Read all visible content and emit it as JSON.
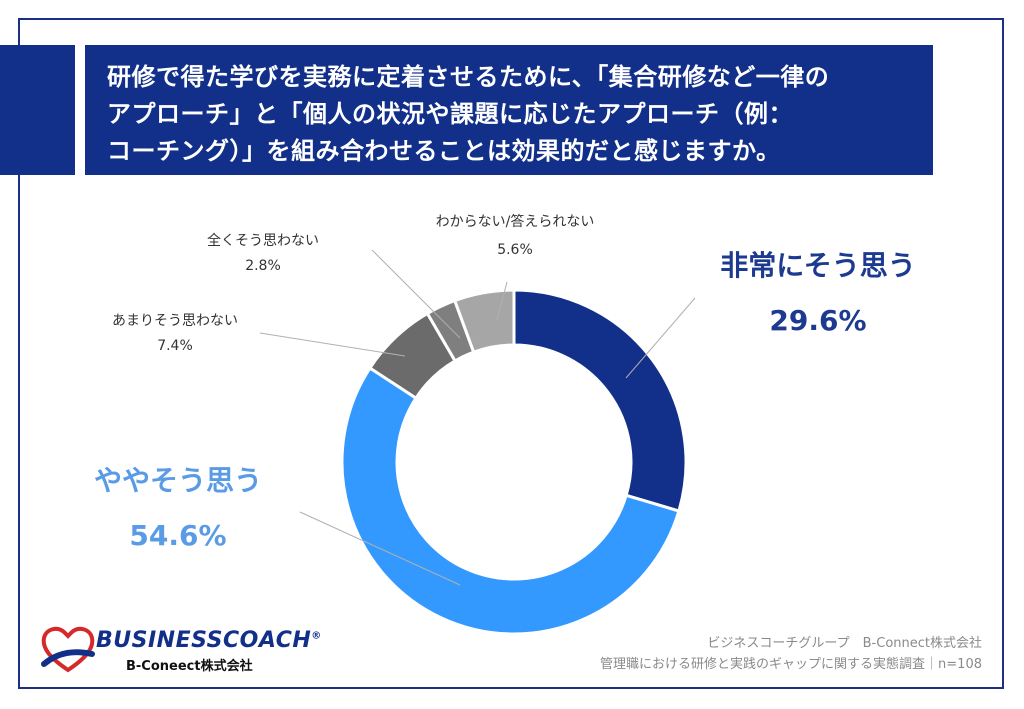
{
  "title": {
    "line1": "研修で得た学びを実務に定着させるために、「集合研修など一律の",
    "line2": "アプローチ」と「個人の状況や課題に応じたアプローチ（例：",
    "line3": "コーチング）」を組み合わせることは効果的だと感じますか。"
  },
  "chart_data": {
    "type": "pie",
    "donut": true,
    "start": "12 o'clock, clockwise",
    "slices": [
      {
        "label": "非常にそう思う",
        "value": 29.6,
        "value_label": "29.6%",
        "color": "#12308a",
        "label_color": "#1c3a8f",
        "emphasis": true
      },
      {
        "label": "ややそう思う",
        "value": 54.6,
        "value_label": "54.6%",
        "color": "#3399ff",
        "label_color": "#5a9be6",
        "emphasis": true
      },
      {
        "label": "あまりそう思わない",
        "value": 7.4,
        "value_label": "7.4%",
        "color": "#6b6b6b",
        "label_color": "#333333",
        "emphasis": false
      },
      {
        "label": "全くそう思わない",
        "value": 2.8,
        "value_label": "2.8%",
        "color": "#7f7f7f",
        "label_color": "#333333",
        "emphasis": false
      },
      {
        "label": "わからない/答えられない",
        "value": 5.6,
        "value_label": "5.6%",
        "color": "#a6a6a6",
        "label_color": "#333333",
        "emphasis": false
      }
    ]
  },
  "footer": {
    "line1": "ビジネスコーチグループ　B-Connect株式会社",
    "line2": "管理職における研修と実践のギャップに関する実態調査｜n=108"
  },
  "logo": {
    "name": "BUSINESSCOACH",
    "registered": "®",
    "sub": "B-Coneect株式会社"
  }
}
